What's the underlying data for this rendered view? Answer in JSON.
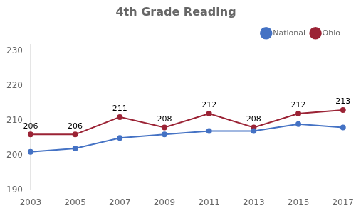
{
  "chart_data": {
    "type": "line",
    "title": "4th Grade Reading",
    "categories": [
      "2003",
      "2005",
      "2007",
      "2009",
      "2011",
      "2013",
      "2015",
      "2017"
    ],
    "series": [
      {
        "name": "National",
        "color": "#4472C4",
        "marker": "circle",
        "values": [
          201,
          202,
          205,
          206,
          207,
          207,
          209,
          208
        ]
      },
      {
        "name": "Ohio",
        "color": "#9B2335",
        "marker": "circle",
        "data_labels": true,
        "values": [
          206,
          206,
          211,
          208,
          212,
          208,
          212,
          213
        ]
      }
    ],
    "ylim": [
      190,
      232
    ],
    "yticks": [
      190,
      200,
      210,
      220,
      230
    ],
    "grid": false,
    "legend": "upper right"
  }
}
